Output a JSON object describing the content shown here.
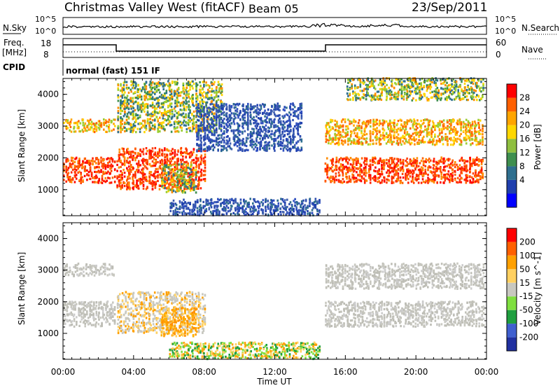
{
  "header": {
    "title": "Christmas Valley West (fitACF)",
    "beam": "Beam 05",
    "date": "23/Sep/2011"
  },
  "summary_panels": {
    "nsky_label": "N.Sky",
    "nsky_ticks": [
      "10^5",
      "10^0"
    ],
    "nsearch_label": "N.Search",
    "nsearch_ticks": [
      "10^5",
      "10^0"
    ],
    "freq_label": "Freq.",
    "freq_unit": "[MHz]",
    "freq_ticks": [
      "18",
      "8"
    ],
    "nave_label": "Nave",
    "nave_ticks": [
      "60",
      "0"
    ],
    "cpid_label": "CPID",
    "cpid_text": "normal (fast) 151 IF"
  },
  "chart_data": [
    {
      "type": "heatmap",
      "panel": "power",
      "ylabel": "Slant Range [km]",
      "xlabel": "",
      "ylim": [
        180,
        4500
      ],
      "xlim": [
        0,
        24
      ],
      "yticks": [
        "1000",
        "2000",
        "3000",
        "4000"
      ],
      "colorbar": {
        "label": "Power [dB]",
        "ticks": [
          "28",
          "24",
          "20",
          "16",
          "12",
          "8",
          "4"
        ],
        "colors": [
          "#0000ff",
          "#1f3fae",
          "#2f6f8f",
          "#3f8f4f",
          "#8fbf3f",
          "#ffd700",
          "#ffa500",
          "#ff6000",
          "#ff0000"
        ]
      },
      "echo_regions": [
        {
          "name": "lower-left band",
          "t": [
            0,
            2.9
          ],
          "range": [
            1200,
            2000
          ],
          "level": "high"
        },
        {
          "name": "upper-left band",
          "t": [
            0,
            2.9
          ],
          "range": [
            2800,
            3200
          ],
          "level": "mid-high"
        },
        {
          "name": "rising band",
          "t": [
            3,
            8
          ],
          "range": [
            1000,
            2300
          ],
          "level": "high"
        },
        {
          "name": "rising upper band",
          "t": [
            3,
            9
          ],
          "range": [
            2800,
            4400
          ],
          "level": "mid"
        },
        {
          "name": "midday arc",
          "t": [
            7.5,
            13.5
          ],
          "range": [
            2200,
            3700
          ],
          "level": "low"
        },
        {
          "name": "ground scatter patch",
          "t": [
            5.5,
            7.5
          ],
          "range": [
            900,
            1800
          ],
          "level": "mid"
        },
        {
          "name": "near range",
          "t": [
            6,
            14.5
          ],
          "range": [
            180,
            700
          ],
          "level": "low"
        },
        {
          "name": "afternoon band",
          "t": [
            14.8,
            23.8
          ],
          "range": [
            1200,
            2000
          ],
          "level": "high"
        },
        {
          "name": "afternoon upper band",
          "t": [
            14.8,
            23.8
          ],
          "range": [
            2400,
            3200
          ],
          "level": "mid-high"
        },
        {
          "name": "afternoon top band",
          "t": [
            16,
            23.8
          ],
          "range": [
            3800,
            4500
          ],
          "level": "mid"
        }
      ]
    },
    {
      "type": "heatmap",
      "panel": "velocity",
      "ylabel": "Slant Range [km]",
      "xlabel": "Time UT",
      "ylim": [
        180,
        4500
      ],
      "xlim": [
        0,
        24
      ],
      "xticks": [
        "00:00",
        "04:00",
        "08:00",
        "12:00",
        "16:00",
        "20:00",
        "00:00"
      ],
      "yticks": [
        "1000",
        "2000",
        "3000",
        "4000"
      ],
      "colorbar": {
        "label": "Velocity [m s^-1]",
        "ticks": [
          "200",
          "100",
          "50",
          "15",
          "-15",
          "-50",
          "-100",
          "-200"
        ],
        "colors": [
          "#2030a0",
          "#3f5fcf",
          "#1f9f3f",
          "#7fdf3f",
          "#c8c8c0",
          "#ffd060",
          "#ffa000",
          "#ff6000",
          "#ff0000"
        ]
      },
      "echo_regions": [
        {
          "name": "lower-left band",
          "t": [
            0,
            2.9
          ],
          "range": [
            1200,
            2000
          ],
          "level": "grey"
        },
        {
          "name": "upper-left band",
          "t": [
            0,
            2.9
          ],
          "range": [
            2800,
            3200
          ],
          "level": "grey"
        },
        {
          "name": "rising band",
          "t": [
            3,
            8
          ],
          "range": [
            1000,
            2300
          ],
          "level": "grey-orange"
        },
        {
          "name": "ground scatter patch",
          "t": [
            5.5,
            7.5
          ],
          "range": [
            900,
            1800
          ],
          "level": "orange"
        },
        {
          "name": "near range",
          "t": [
            6,
            14.5
          ],
          "range": [
            180,
            700
          ],
          "level": "orange-green"
        },
        {
          "name": "afternoon band",
          "t": [
            14.8,
            23.8
          ],
          "range": [
            1200,
            2000
          ],
          "level": "grey"
        },
        {
          "name": "afternoon upper band",
          "t": [
            14.8,
            23.8
          ],
          "range": [
            2400,
            3200
          ],
          "level": "grey"
        }
      ]
    }
  ],
  "colors": {
    "frame": "#000000",
    "background": "#ffffff"
  }
}
